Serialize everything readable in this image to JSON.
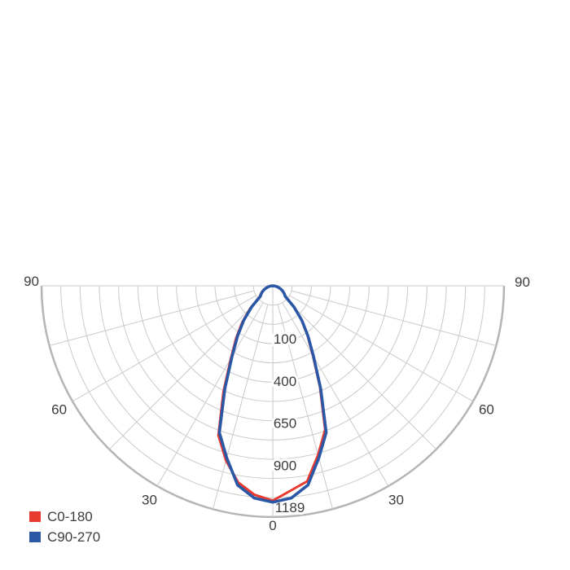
{
  "page": {
    "background": "#ffffff"
  },
  "legend": {
    "position": "bottom-left",
    "items": [
      {
        "label": "C0-180",
        "color": "#E8392E"
      },
      {
        "label": "C90-270",
        "color": "#2B58A6"
      }
    ]
  },
  "chart_data": {
    "type": "polar",
    "subtype": "photometric_intensity_distribution_semicircle",
    "title": "",
    "angle_axis": {
      "labels": [
        "90",
        "60",
        "30",
        "0",
        "30",
        "60",
        "90"
      ],
      "label_angles_deg": [
        -90,
        -60,
        -30,
        0,
        30,
        60,
        90
      ],
      "grid_step_deg": 15,
      "range_deg": [
        -90,
        90
      ]
    },
    "radial_axis": {
      "ring_count": 12,
      "ring_labels": [
        "100",
        "400",
        "650",
        "900",
        "1189"
      ],
      "max_scale_label": "1189",
      "grid_color": "#cacaca",
      "rim_color": "#b5b5b5"
    },
    "series": [
      {
        "name": "C0-180",
        "color": "#E8392E",
        "stroke_width": 3,
        "points_angle_deg_radiusfrac": [
          [
            -90,
            0
          ],
          [
            -85,
            0.009
          ],
          [
            -80,
            0.017
          ],
          [
            -75,
            0.026
          ],
          [
            -70,
            0.035
          ],
          [
            -65,
            0.045
          ],
          [
            -60,
            0.055
          ],
          [
            -55,
            0.064
          ],
          [
            -50,
            0.074
          ],
          [
            -45,
            0.138
          ],
          [
            -40,
            0.205
          ],
          [
            -35,
            0.276
          ],
          [
            -30,
            0.362
          ],
          [
            -25,
            0.505
          ],
          [
            -20,
            0.688
          ],
          [
            -15,
            0.782
          ],
          [
            -10,
            0.863
          ],
          [
            -5,
            0.907
          ],
          [
            0,
            0.929
          ],
          [
            5,
            0.889
          ],
          [
            10,
            0.858
          ],
          [
            15,
            0.757
          ],
          [
            20,
            0.662
          ],
          [
            25,
            0.482
          ],
          [
            30,
            0.346
          ],
          [
            35,
            0.262
          ],
          [
            40,
            0.193
          ],
          [
            45,
            0.133
          ],
          [
            50,
            0.073
          ],
          [
            55,
            0.062
          ],
          [
            60,
            0.053
          ],
          [
            65,
            0.043
          ],
          [
            70,
            0.033
          ],
          [
            75,
            0.024
          ],
          [
            80,
            0.016
          ],
          [
            85,
            0.008
          ],
          [
            90,
            0
          ]
        ],
        "intensity_cd_estimate_by_angle": {
          "-90": 0,
          "-80": 7,
          "-70": 15,
          "-60": 24,
          "-50": 32,
          "-40": 90,
          "-30": 322,
          "-20": 787,
          "-10": 1042,
          "0": 1144,
          "10": 1035,
          "20": 751,
          "30": 296,
          "40": 84,
          "50": 32,
          "60": 23,
          "70": 14,
          "80": 7,
          "90": 0
        }
      },
      {
        "name": "C90-270",
        "color": "#2B58A6",
        "stroke_width": 3.6,
        "points_angle_deg_radiusfrac": [
          [
            -90,
            0
          ],
          [
            -85,
            0.008
          ],
          [
            -80,
            0.016
          ],
          [
            -75,
            0.024
          ],
          [
            -70,
            0.033
          ],
          [
            -65,
            0.043
          ],
          [
            -60,
            0.052
          ],
          [
            -55,
            0.061
          ],
          [
            -50,
            0.07
          ],
          [
            -45,
            0.13
          ],
          [
            -40,
            0.196
          ],
          [
            -35,
            0.266
          ],
          [
            -30,
            0.352
          ],
          [
            -25,
            0.49
          ],
          [
            -20,
            0.675
          ],
          [
            -15,
            0.77
          ],
          [
            -10,
            0.875
          ],
          [
            -5,
            0.921
          ],
          [
            0,
            0.936
          ],
          [
            5,
            0.921
          ],
          [
            10,
            0.875
          ],
          [
            15,
            0.77
          ],
          [
            20,
            0.675
          ],
          [
            25,
            0.49
          ],
          [
            30,
            0.352
          ],
          [
            35,
            0.266
          ],
          [
            40,
            0.196
          ],
          [
            45,
            0.13
          ],
          [
            50,
            0.07
          ],
          [
            55,
            0.061
          ],
          [
            60,
            0.052
          ],
          [
            65,
            0.043
          ],
          [
            70,
            0.033
          ],
          [
            75,
            0.024
          ],
          [
            80,
            0.016
          ],
          [
            85,
            0.008
          ],
          [
            90,
            0
          ]
        ],
        "intensity_cd_estimate_by_angle": {
          "-90": 0,
          "-80": 7,
          "-70": 14,
          "-60": 23,
          "-50": 31,
          "-40": 86,
          "-30": 306,
          "-20": 769,
          "-10": 1061,
          "0": 1155,
          "10": 1061,
          "20": 769,
          "30": 306,
          "40": 86,
          "50": 31,
          "60": 23,
          "70": 14,
          "80": 7,
          "90": 0
        }
      }
    ],
    "legend_position": "bottom-left",
    "grid": true,
    "text_color": "#3c3c3c"
  }
}
